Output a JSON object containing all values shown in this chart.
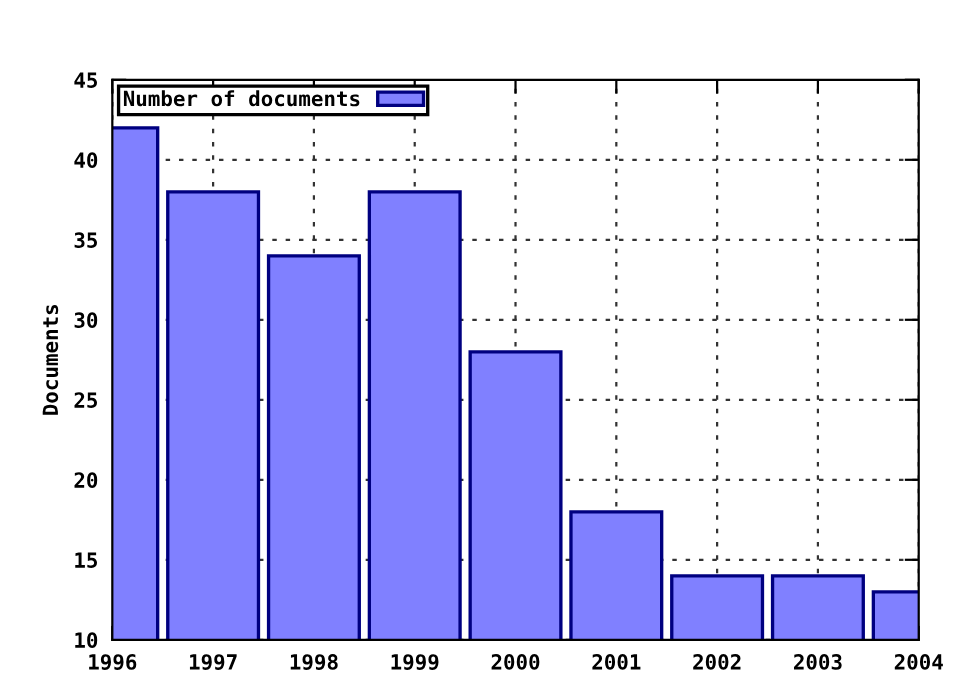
{
  "chart_data": {
    "type": "bar",
    "ylabel": "Documents",
    "x": [
      1996,
      1997,
      1998,
      1999,
      2000,
      2001,
      2002,
      2003,
      2004
    ],
    "series": [
      {
        "name": "Number of documents",
        "color": "#8080ff",
        "values": [
          42,
          38,
          34,
          38,
          28,
          18,
          14,
          14,
          13
        ]
      }
    ],
    "xlim": [
      1996,
      2004
    ],
    "xticks": [
      1996,
      1997,
      1998,
      1999,
      2000,
      2001,
      2002,
      2003,
      2004
    ],
    "ylim": [
      10,
      45
    ],
    "yticks": [
      10,
      15,
      20,
      25,
      30,
      35,
      40,
      45
    ],
    "grid": true,
    "legend": "top left"
  }
}
